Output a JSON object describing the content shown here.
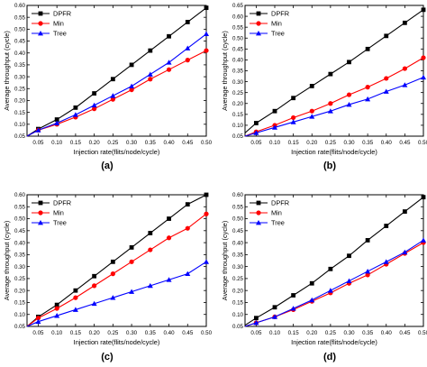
{
  "chart_data": [
    {
      "type": "line",
      "panel_label": "(a)",
      "xlabel": "Injection rate(flits/node/cycle)",
      "ylabel": "Average throughput (cycle)",
      "xlim": [
        0.02,
        0.5
      ],
      "ylim": [
        0.05,
        0.6
      ],
      "x_ticks": [
        "0.05",
        "0.10",
        "0.15",
        "0.20",
        "0.25",
        "0.30",
        "0.35",
        "0.40",
        "0.45",
        "0.50"
      ],
      "y_ticks": [
        "0.05",
        "0.10",
        "0.15",
        "0.20",
        "0.25",
        "0.30",
        "0.35",
        "0.40",
        "0.45",
        "0.50",
        "0.55",
        "0.60"
      ],
      "legend_position": "top-left",
      "x": [
        0.02,
        0.05,
        0.1,
        0.15,
        0.2,
        0.25,
        0.3,
        0.35,
        0.4,
        0.45,
        0.5
      ],
      "series": [
        {
          "name": "DPFR",
          "color": "#000000",
          "marker": "square",
          "values": [
            0.05,
            0.08,
            0.12,
            0.17,
            0.23,
            0.29,
            0.35,
            0.41,
            0.47,
            0.53,
            0.59
          ]
        },
        {
          "name": "Min",
          "color": "#ff0000",
          "marker": "circle",
          "values": [
            0.05,
            0.075,
            0.1,
            0.13,
            0.165,
            0.205,
            0.245,
            0.29,
            0.33,
            0.37,
            0.41
          ]
        },
        {
          "name": "Tree",
          "color": "#0000ff",
          "marker": "triangle",
          "values": [
            0.05,
            0.075,
            0.105,
            0.14,
            0.18,
            0.22,
            0.26,
            0.31,
            0.36,
            0.42,
            0.48
          ]
        }
      ]
    },
    {
      "type": "line",
      "panel_label": "(b)",
      "xlabel": "Injection rate(flits/node/cycle)",
      "ylabel": "Average throughput (cycle)",
      "xlim": [
        0.02,
        0.5
      ],
      "ylim": [
        0.05,
        0.65
      ],
      "x_ticks": [
        "0.05",
        "0.10",
        "0.15",
        "0.20",
        "0.25",
        "0.30",
        "0.35",
        "0.40",
        "0.45",
        "0.50"
      ],
      "y_ticks": [
        "0.05",
        "0.10",
        "0.15",
        "0.20",
        "0.25",
        "0.30",
        "0.35",
        "0.40",
        "0.45",
        "0.50",
        "0.55",
        "0.60",
        "0.65"
      ],
      "legend_position": "top-left",
      "x": [
        0.02,
        0.05,
        0.1,
        0.15,
        0.2,
        0.25,
        0.3,
        0.35,
        0.4,
        0.45,
        0.5
      ],
      "series": [
        {
          "name": "DPFR",
          "color": "#000000",
          "marker": "square",
          "values": [
            0.065,
            0.11,
            0.165,
            0.225,
            0.28,
            0.335,
            0.39,
            0.45,
            0.51,
            0.57,
            0.63
          ]
        },
        {
          "name": "Min",
          "color": "#ff0000",
          "marker": "circle",
          "values": [
            0.05,
            0.07,
            0.1,
            0.135,
            0.165,
            0.2,
            0.24,
            0.275,
            0.315,
            0.36,
            0.41
          ]
        },
        {
          "name": "Tree",
          "color": "#0000ff",
          "marker": "triangle",
          "values": [
            0.05,
            0.065,
            0.09,
            0.115,
            0.14,
            0.165,
            0.195,
            0.22,
            0.255,
            0.285,
            0.32
          ]
        }
      ]
    },
    {
      "type": "line",
      "panel_label": "(c)",
      "xlabel": "Injection rate(flits/node/cycle)",
      "ylabel": "Average throughput (cycle)",
      "xlim": [
        0.02,
        0.5
      ],
      "ylim": [
        0.05,
        0.6
      ],
      "x_ticks": [
        "0.05",
        "0.10",
        "0.15",
        "0.20",
        "0.25",
        "0.30",
        "0.35",
        "0.40",
        "0.45",
        "0.50"
      ],
      "y_ticks": [
        "0.05",
        "0.10",
        "0.15",
        "0.20",
        "0.25",
        "0.30",
        "0.35",
        "0.40",
        "0.45",
        "0.50",
        "0.55",
        "0.60"
      ],
      "legend_position": "top-left",
      "x": [
        0.02,
        0.05,
        0.1,
        0.15,
        0.2,
        0.25,
        0.3,
        0.35,
        0.4,
        0.45,
        0.5
      ],
      "series": [
        {
          "name": "DPFR",
          "color": "#000000",
          "marker": "square",
          "values": [
            0.05,
            0.09,
            0.14,
            0.2,
            0.26,
            0.32,
            0.38,
            0.44,
            0.5,
            0.56,
            0.6
          ]
        },
        {
          "name": "Min",
          "color": "#ff0000",
          "marker": "circle",
          "values": [
            0.05,
            0.085,
            0.125,
            0.17,
            0.22,
            0.27,
            0.32,
            0.37,
            0.42,
            0.46,
            0.52
          ]
        },
        {
          "name": "Tree",
          "color": "#0000ff",
          "marker": "triangle",
          "values": [
            0.05,
            0.07,
            0.095,
            0.12,
            0.145,
            0.17,
            0.195,
            0.22,
            0.245,
            0.27,
            0.32
          ]
        }
      ]
    },
    {
      "type": "line",
      "panel_label": "(d)",
      "xlabel": "Injection rate(flits/node/cycle)",
      "ylabel": "Average throughput (cycle)",
      "xlim": [
        0.02,
        0.5
      ],
      "ylim": [
        0.05,
        0.6
      ],
      "x_ticks": [
        "0.05",
        "0.10",
        "0.15",
        "0.20",
        "0.25",
        "0.30",
        "0.35",
        "0.40",
        "0.45",
        "0.50"
      ],
      "y_ticks": [
        "0.05",
        "0.10",
        "0.15",
        "0.20",
        "0.25",
        "0.30",
        "0.35",
        "0.40",
        "0.45",
        "0.50",
        "0.55",
        "0.60"
      ],
      "legend_position": "top-left",
      "x": [
        0.02,
        0.05,
        0.1,
        0.15,
        0.2,
        0.25,
        0.3,
        0.35,
        0.4,
        0.45,
        0.5
      ],
      "series": [
        {
          "name": "DPFR",
          "color": "#000000",
          "marker": "square",
          "values": [
            0.055,
            0.085,
            0.13,
            0.18,
            0.23,
            0.29,
            0.345,
            0.41,
            0.47,
            0.53,
            0.59
          ]
        },
        {
          "name": "Min",
          "color": "#ff0000",
          "marker": "circle",
          "values": [
            0.05,
            0.065,
            0.09,
            0.12,
            0.155,
            0.19,
            0.23,
            0.265,
            0.31,
            0.355,
            0.4
          ]
        },
        {
          "name": "Tree",
          "color": "#0000ff",
          "marker": "triangle",
          "values": [
            0.05,
            0.065,
            0.09,
            0.125,
            0.16,
            0.2,
            0.24,
            0.28,
            0.32,
            0.36,
            0.41
          ]
        }
      ]
    }
  ]
}
